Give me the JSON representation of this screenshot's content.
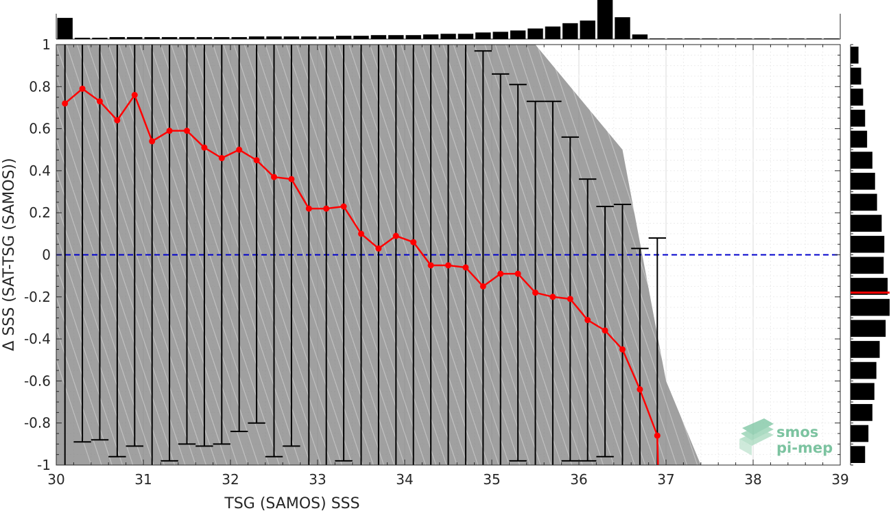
{
  "chart_data": {
    "type": "scatter",
    "title": "",
    "xlabel": "TSG (SAMOS) SSS",
    "ylabel": "Δ SSS (SAT-TSG (SAMOS))",
    "xlim": [
      30,
      39
    ],
    "ylim": [
      -1,
      1
    ],
    "xticks": [
      30,
      31,
      32,
      33,
      34,
      35,
      36,
      37,
      38,
      39
    ],
    "yticks": [
      -1,
      -0.8,
      -0.6,
      -0.4,
      -0.2,
      0,
      0.2,
      0.4,
      0.6,
      0.8,
      1
    ],
    "grid": true,
    "zero_line_color": "#0000cc",
    "scatter_color": "#808080",
    "series_color": "#ff0000",
    "scatter_upper_bound": [
      {
        "x": 30.0,
        "y": 1.0
      },
      {
        "x": 35.5,
        "y": 1.0
      },
      {
        "x": 36.5,
        "y": 0.5
      },
      {
        "x": 37.0,
        "y": -0.6
      },
      {
        "x": 37.4,
        "y": -1.0
      }
    ],
    "bin_stats": {
      "x": [
        30.1,
        30.3,
        30.5,
        30.7,
        30.9,
        31.1,
        31.3,
        31.5,
        31.7,
        31.9,
        32.1,
        32.3,
        32.5,
        32.7,
        32.9,
        33.1,
        33.3,
        33.5,
        33.7,
        33.9,
        34.1,
        34.3,
        34.5,
        34.7,
        34.9,
        35.1,
        35.3,
        35.5,
        35.7,
        35.9,
        36.1,
        36.3,
        36.5,
        36.7,
        36.9
      ],
      "median": [
        0.72,
        0.79,
        0.73,
        0.64,
        0.76,
        0.54,
        0.59,
        0.59,
        0.51,
        0.46,
        0.5,
        0.45,
        0.37,
        0.36,
        0.22,
        0.22,
        0.23,
        0.1,
        0.03,
        0.09,
        0.06,
        -0.05,
        -0.05,
        -0.06,
        -0.15,
        -0.09,
        -0.09,
        -0.18,
        -0.2,
        -0.21,
        -0.31,
        -0.36,
        -0.45,
        -0.64,
        -0.86
      ],
      "upper": [
        1.2,
        1.2,
        1.2,
        1.2,
        1.2,
        1.2,
        1.2,
        1.2,
        1.2,
        1.2,
        1.2,
        1.2,
        1.2,
        1.2,
        1.2,
        1.2,
        1.2,
        1.2,
        1.2,
        1.2,
        1.2,
        1.2,
        1.2,
        1.2,
        0.97,
        0.86,
        0.81,
        0.73,
        0.73,
        0.56,
        0.36,
        0.23,
        0.24,
        0.03,
        0.08
      ],
      "lower": [
        -1.2,
        -0.89,
        -0.88,
        -0.96,
        -0.91,
        -1.2,
        -0.98,
        -0.9,
        -0.91,
        -0.9,
        -0.84,
        -0.8,
        -0.96,
        -0.91,
        -1.2,
        -1.2,
        -0.98,
        -1.2,
        -1.2,
        -1.2,
        -1.2,
        -1.2,
        -1.2,
        -1.2,
        -1.2,
        -1.2,
        -0.98,
        -1.2,
        -1.2,
        -0.98,
        -0.98,
        -0.96,
        -1.2,
        -1.2,
        -1.2
      ]
    },
    "top_histogram": {
      "x": [
        30.1,
        30.3,
        30.5,
        30.7,
        30.9,
        31.1,
        31.3,
        31.5,
        31.7,
        31.9,
        32.1,
        32.3,
        32.5,
        32.7,
        32.9,
        33.1,
        33.3,
        33.5,
        33.7,
        33.9,
        34.1,
        34.3,
        34.5,
        34.7,
        34.9,
        35.1,
        35.3,
        35.5,
        35.7,
        35.9,
        36.1,
        36.3,
        36.5,
        36.7,
        36.9,
        37.1,
        37.3,
        37.5,
        37.7,
        37.9,
        38.1,
        38.3,
        38.5,
        38.7,
        38.9
      ],
      "counts": [
        32,
        2,
        2,
        3,
        3,
        3,
        3,
        3,
        3,
        3,
        3,
        4,
        4,
        4,
        4,
        4,
        5,
        5,
        6,
        6,
        6,
        7,
        8,
        8,
        10,
        11,
        13,
        16,
        19,
        24,
        28,
        59,
        33,
        7,
        1,
        1,
        1,
        1,
        1,
        1,
        1,
        1,
        1,
        1,
        1
      ]
    },
    "right_histogram": {
      "y": [
        -0.95,
        -0.85,
        -0.75,
        -0.65,
        -0.55,
        -0.45,
        -0.35,
        -0.25,
        -0.15,
        -0.05,
        0.05,
        0.15,
        0.25,
        0.35,
        0.45,
        0.55,
        0.65,
        0.75,
        0.85,
        0.95
      ],
      "counts": [
        22,
        27,
        33,
        36,
        39,
        44,
        53,
        59,
        56,
        50,
        51,
        47,
        40,
        37,
        33,
        25,
        22,
        19,
        16,
        12
      ],
      "median_line": -0.18
    }
  },
  "logo": {
    "line1": "smos",
    "line2": "pi-mep"
  }
}
